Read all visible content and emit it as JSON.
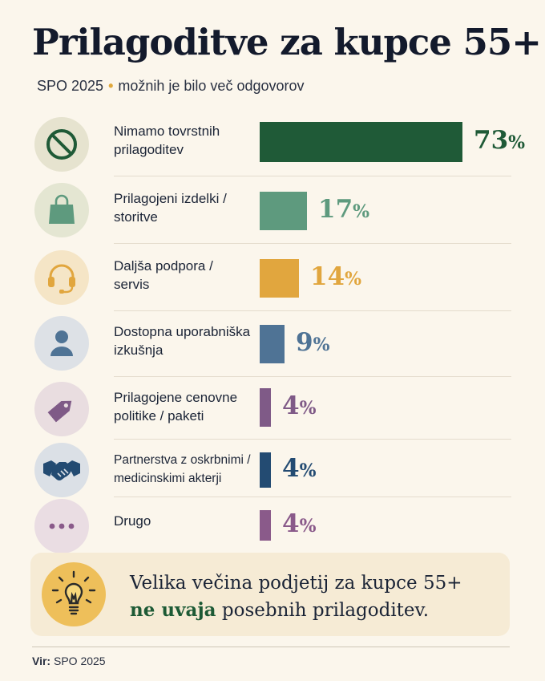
{
  "title": "Prilagoditve za kupce 55+",
  "subtitle": {
    "source": "SPO 2025",
    "note": "možnih je bilo več odgovorov"
  },
  "chart_data": {
    "type": "bar",
    "orientation": "horizontal",
    "title": "Prilagoditve za kupce 55+",
    "categories": [
      "Nimamo tovrstnih prilagoditev",
      "Prilagojeni izdelki / storitve",
      "Daljša podpora / servis",
      "Dostopna uporabniška izkušnja",
      "Prilagojene cenovne politike / paketi",
      "Partnerstva z oskrbnimi / medicinskimi akterji",
      "Drugo"
    ],
    "values": [
      73,
      17,
      14,
      9,
      4,
      4,
      4
    ],
    "unit": "%",
    "xlim": [
      0,
      73
    ],
    "grid": false,
    "legend": "none"
  },
  "rows": [
    {
      "label_lines": [
        "Nimamo tovrstnih",
        "prilagoditev"
      ],
      "icon": "prohibited-icon",
      "color": "#1f5a37",
      "icon_bg": "#e6e3cf",
      "pct": "73",
      "sign": "%"
    },
    {
      "label_lines": [
        "Prilagojeni izdelki /",
        "storitve"
      ],
      "icon": "shopping-bag-icon",
      "color": "#5e9a7e",
      "icon_bg": "#e4e6d2",
      "pct": "17",
      "sign": "%"
    },
    {
      "label_lines": [
        "Daljša podpora /",
        "servis"
      ],
      "icon": "headset-icon",
      "color": "#e1a63e",
      "icon_bg": "#f5e5c6",
      "pct": "14",
      "sign": "%"
    },
    {
      "label_lines": [
        "Dostopna uporabniška",
        "izkušnja"
      ],
      "icon": "user-icon",
      "color": "#4f7395",
      "icon_bg": "#dde1e6",
      "pct": "9",
      "sign": "%"
    },
    {
      "label_lines": [
        "Prilagojene cenovne",
        "politike / paketi"
      ],
      "icon": "price-tag-icon",
      "color": "#7f5a87",
      "icon_bg": "#e9dde0",
      "pct": "4",
      "sign": "%"
    },
    {
      "label_lines": [
        "Partnerstva z oskrbnimi /",
        "medicinskimi akterji"
      ],
      "icon": "handshake-icon",
      "color": "#234b72",
      "icon_bg": "#dbe0e6",
      "pct": "4",
      "sign": "%"
    },
    {
      "label_lines": [
        "Drugo"
      ],
      "icon": "ellipsis-icon",
      "color": "#8a5a8a",
      "icon_bg": "#eadde3",
      "pct": "4",
      "sign": "%"
    }
  ],
  "callout": {
    "line1": "Velika večina podjetij za kupce 55+",
    "highlight": "ne uvaja",
    "line2_rest": " posebnih prilagoditev.",
    "icon": "lightbulb-icon",
    "icon_bg": "#eebf5a"
  },
  "footer": {
    "source_label": "Vir:",
    "source_value": "SPO 2025"
  }
}
